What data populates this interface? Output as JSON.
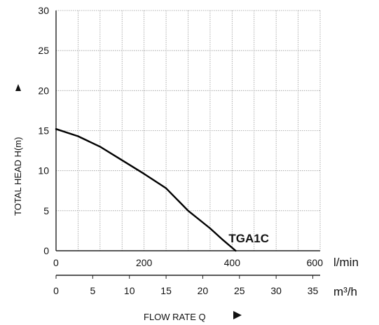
{
  "chart_data": {
    "type": "line",
    "ylabel": "TOTAL HEAD H(m)",
    "xlabel": "FLOW RATE Q",
    "y_ticks": [
      "0",
      "5",
      "10",
      "15",
      "20",
      "25",
      "30"
    ],
    "ylim": [
      0,
      30
    ],
    "x_primary": {
      "unit": "l/min",
      "ticks": [
        "0",
        "200",
        "400",
        "600"
      ],
      "tick_values": [
        0,
        200,
        400,
        600
      ],
      "range": [
        0,
        600
      ]
    },
    "x_secondary": {
      "unit": "m³/h",
      "ticks": [
        "0",
        "5",
        "10",
        "15",
        "20",
        "25",
        "30",
        "35"
      ],
      "tick_values": [
        0,
        5,
        10,
        15,
        20,
        25,
        30,
        35
      ]
    },
    "grid": true,
    "series": [
      {
        "name": "TGA1C",
        "color": "#000000",
        "x": [
          0,
          50,
          100,
          150,
          200,
          250,
          300,
          350,
          380,
          408
        ],
        "y": [
          15.2,
          14.3,
          13.0,
          11.3,
          9.6,
          7.8,
          5.0,
          2.8,
          1.3,
          0
        ]
      }
    ]
  },
  "icons": {
    "y_axis_arrow": "arrow-up-icon",
    "x_axis_arrow": "arrow-right-icon"
  }
}
